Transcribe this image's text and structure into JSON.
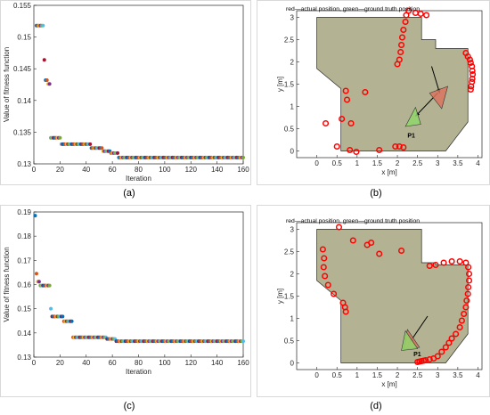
{
  "chart_data": [
    {
      "id": "a",
      "caption": "(a)",
      "type": "scatter",
      "xlabel": "Iteration",
      "ylabel": "Value of fitness function",
      "xlim": [
        0,
        160
      ],
      "ylim": [
        0.13,
        0.155
      ],
      "xticks": [
        0,
        20,
        40,
        60,
        80,
        100,
        120,
        140,
        160
      ],
      "yticks": [
        0.13,
        0.135,
        0.14,
        0.145,
        0.15,
        0.155
      ],
      "ytick_labels": [
        "0.13",
        "0.135",
        "0.14",
        "0.145",
        "0.15",
        "0.155"
      ],
      "segments": [
        {
          "x0": 2,
          "x1": 7,
          "y": 0.1518
        },
        {
          "x0": 8,
          "x1": 8,
          "y": 0.1464
        },
        {
          "x0": 9,
          "x1": 10,
          "y": 0.1432
        },
        {
          "x0": 11,
          "x1": 12,
          "y": 0.1426
        },
        {
          "x0": 13,
          "x1": 20,
          "y": 0.1341
        },
        {
          "x0": 21,
          "x1": 43,
          "y": 0.1331
        },
        {
          "x0": 44,
          "x1": 52,
          "y": 0.1325
        },
        {
          "x0": 53,
          "x1": 58,
          "y": 0.132
        },
        {
          "x0": 59,
          "x1": 64,
          "y": 0.1317
        },
        {
          "x0": 65,
          "x1": 160,
          "y": 0.131
        }
      ]
    },
    {
      "id": "b",
      "caption": "(b)",
      "type": "map",
      "legend_text": "red—actual position, green—ground truth position",
      "xlabel": "x [m]",
      "ylabel": "y [m]",
      "xlim": [
        -0.5,
        4.1
      ],
      "ylim": [
        -0.15,
        3.15
      ],
      "xticks": [
        0,
        0.5,
        1,
        1.5,
        2,
        2.5,
        3,
        3.5,
        4
      ],
      "xtick_labels": [
        "0",
        "0.5",
        "1",
        "1.5",
        "2",
        "2.5",
        "3",
        "3.5",
        "4"
      ],
      "yticks": [
        0,
        0.5,
        1,
        1.5,
        2,
        2.5,
        3
      ],
      "ytick_labels": [
        "0",
        "0.5",
        "1",
        "1.5",
        "2",
        "2.5",
        "3"
      ],
      "polygon": [
        [
          0,
          3
        ],
        [
          2.6,
          3
        ],
        [
          2.6,
          2.5
        ],
        [
          2.95,
          2.5
        ],
        [
          2.95,
          2.3
        ],
        [
          3.75,
          2.3
        ],
        [
          3.75,
          0.65
        ],
        [
          3.2,
          0
        ],
        [
          0.6,
          0
        ],
        [
          0.6,
          1.4
        ],
        [
          0,
          1.85
        ]
      ],
      "red_points": [
        [
          0.22,
          0.62
        ],
        [
          0.5,
          0.1
        ],
        [
          0.62,
          0.72
        ],
        [
          0.72,
          1.35
        ],
        [
          0.75,
          1.15
        ],
        [
          0.82,
          0.02
        ],
        [
          0.85,
          0.62
        ],
        [
          0.98,
          -0.02
        ],
        [
          1.2,
          1.32
        ],
        [
          1.55,
          0.02
        ],
        [
          1.95,
          0.1
        ],
        [
          2.0,
          1.95
        ],
        [
          2.05,
          2.05
        ],
        [
          2.08,
          2.22
        ],
        [
          2.1,
          2.38
        ],
        [
          2.12,
          2.55
        ],
        [
          2.15,
          2.72
        ],
        [
          2.2,
          2.9
        ],
        [
          2.22,
          3.05
        ],
        [
          2.28,
          3.15
        ],
        [
          2.45,
          3.1
        ],
        [
          2.58,
          3.08
        ],
        [
          2.72,
          3.05
        ],
        [
          2.05,
          0.1
        ],
        [
          2.15,
          0.08
        ],
        [
          3.7,
          2.2
        ],
        [
          3.75,
          2.12
        ],
        [
          3.8,
          2.05
        ],
        [
          3.82,
          1.98
        ],
        [
          3.85,
          1.9
        ],
        [
          3.86,
          1.8
        ],
        [
          3.87,
          1.72
        ],
        [
          3.86,
          1.62
        ],
        [
          3.85,
          1.55
        ],
        [
          3.83,
          1.45
        ],
        [
          3.82,
          1.38
        ]
      ],
      "red_triangle": [
        [
          2.8,
          1.3
        ],
        [
          3.25,
          1.45
        ],
        [
          3.1,
          0.95
        ]
      ],
      "green_triangle": [
        [
          2.2,
          0.55
        ],
        [
          2.58,
          0.6
        ],
        [
          2.45,
          0.98
        ]
      ],
      "arrows": [
        [
          [
            2.85,
            1.9
          ],
          [
            3.05,
            1.3
          ]
        ],
        [
          [
            3.0,
            1.3
          ],
          [
            2.45,
            0.78
          ]
        ]
      ],
      "point_label": "P1",
      "point_label_pos": [
        2.25,
        0.3
      ]
    },
    {
      "id": "c",
      "caption": "(c)",
      "type": "scatter",
      "xlabel": "Iteration",
      "ylabel": "Value of fitness function",
      "xlim": [
        0,
        160
      ],
      "ylim": [
        0.13,
        0.19
      ],
      "xticks": [
        0,
        20,
        40,
        60,
        80,
        100,
        120,
        140,
        160
      ],
      "yticks": [
        0.13,
        0.14,
        0.15,
        0.16,
        0.17,
        0.18,
        0.19
      ],
      "ytick_labels": [
        "0.13",
        "0.14",
        "0.15",
        "0.16",
        "0.17",
        "0.18",
        "0.19"
      ],
      "segments": [
        {
          "x0": 1,
          "x1": 1,
          "y": 0.1885
        },
        {
          "x0": 2,
          "x1": 2,
          "y": 0.1645
        },
        {
          "x0": 3,
          "x1": 4,
          "y": 0.1612
        },
        {
          "x0": 5,
          "x1": 12,
          "y": 0.1596
        },
        {
          "x0": 13,
          "x1": 13,
          "y": 0.15
        },
        {
          "x0": 14,
          "x1": 22,
          "y": 0.1468
        },
        {
          "x0": 23,
          "x1": 29,
          "y": 0.1448
        },
        {
          "x0": 30,
          "x1": 55,
          "y": 0.1382
        },
        {
          "x0": 56,
          "x1": 62,
          "y": 0.1375
        },
        {
          "x0": 63,
          "x1": 160,
          "y": 0.1366
        }
      ]
    },
    {
      "id": "d",
      "caption": "(d)",
      "type": "map",
      "legend_text": "red—actual position, green—ground truth position",
      "xlabel": "x [m]",
      "ylabel": "y [m]",
      "xlim": [
        -0.5,
        4.1
      ],
      "ylim": [
        -0.15,
        3.15
      ],
      "xticks": [
        0,
        0.5,
        1,
        1.5,
        2,
        2.5,
        3,
        3.5,
        4
      ],
      "xtick_labels": [
        "0",
        "0.5",
        "1",
        "1.5",
        "2",
        "2.5",
        "3",
        "3.5",
        "4"
      ],
      "yticks": [
        0,
        0.5,
        1,
        1.5,
        2,
        2.5,
        3
      ],
      "ytick_labels": [
        "0",
        "0.5",
        "1",
        "1.5",
        "2",
        "2.5",
        "3"
      ],
      "polygon": [
        [
          0,
          3
        ],
        [
          2.6,
          3
        ],
        [
          2.6,
          2.25
        ],
        [
          2.95,
          2.25
        ],
        [
          2.95,
          2.2
        ],
        [
          3.75,
          2.2
        ],
        [
          3.75,
          0.65
        ],
        [
          3.2,
          0
        ],
        [
          0.6,
          0
        ],
        [
          0.6,
          1.4
        ],
        [
          0,
          1.85
        ]
      ],
      "red_points": [
        [
          0.15,
          2.55
        ],
        [
          0.18,
          2.35
        ],
        [
          0.17,
          2.15
        ],
        [
          0.2,
          1.95
        ],
        [
          0.28,
          1.75
        ],
        [
          0.42,
          1.55
        ],
        [
          0.65,
          1.35
        ],
        [
          0.7,
          1.25
        ],
        [
          0.72,
          1.15
        ],
        [
          0.55,
          3.05
        ],
        [
          0.9,
          2.75
        ],
        [
          1.25,
          2.65
        ],
        [
          1.35,
          2.7
        ],
        [
          1.55,
          2.45
        ],
        [
          2.1,
          2.52
        ],
        [
          2.5,
          0.02
        ],
        [
          2.55,
          0.03
        ],
        [
          2.6,
          0.04
        ],
        [
          2.65,
          0.05
        ],
        [
          2.7,
          0.06
        ],
        [
          2.8,
          0.08
        ],
        [
          2.9,
          0.1
        ],
        [
          3.0,
          0.15
        ],
        [
          3.1,
          0.25
        ],
        [
          3.2,
          0.35
        ],
        [
          3.28,
          0.45
        ],
        [
          3.35,
          0.55
        ],
        [
          3.45,
          0.65
        ],
        [
          3.55,
          0.8
        ],
        [
          3.6,
          0.95
        ],
        [
          3.65,
          1.1
        ],
        [
          3.7,
          1.25
        ],
        [
          3.72,
          1.4
        ],
        [
          3.75,
          1.55
        ],
        [
          3.76,
          1.7
        ],
        [
          3.78,
          1.85
        ],
        [
          3.78,
          2.0
        ],
        [
          3.76,
          2.15
        ],
        [
          3.7,
          2.25
        ],
        [
          3.55,
          2.28
        ],
        [
          3.35,
          2.28
        ],
        [
          3.15,
          2.25
        ],
        [
          2.95,
          2.2
        ],
        [
          2.8,
          2.18
        ]
      ],
      "red_triangle": [
        [
          2.15,
          0.3
        ],
        [
          2.55,
          0.35
        ],
        [
          2.25,
          0.75
        ]
      ],
      "green_triangle": [
        [
          2.1,
          0.28
        ],
        [
          2.5,
          0.32
        ],
        [
          2.2,
          0.72
        ]
      ],
      "arrows": [
        [
          [
            2.75,
            1.05
          ],
          [
            2.3,
            0.45
          ]
        ]
      ],
      "point_label": "P1",
      "point_label_pos": [
        2.4,
        0.15
      ]
    }
  ]
}
